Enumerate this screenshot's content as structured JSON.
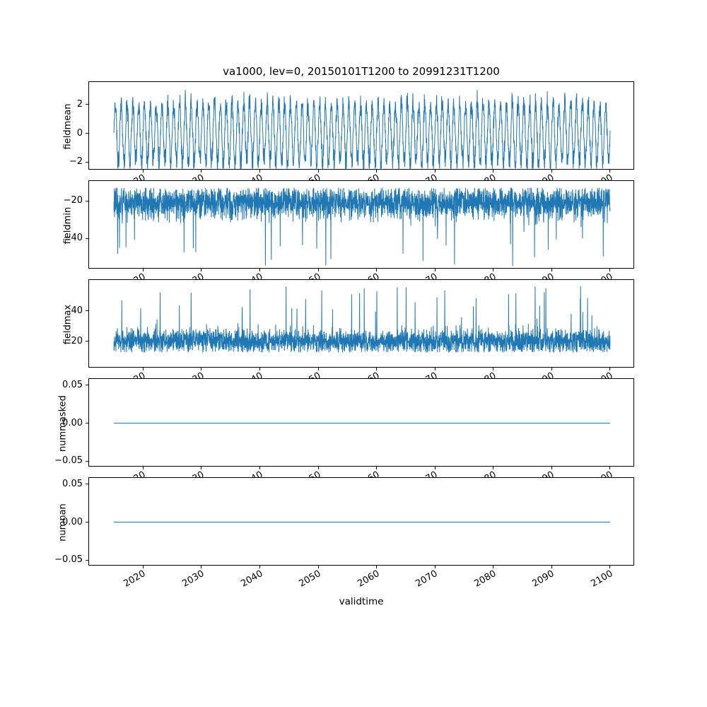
{
  "figure": {
    "background": "#ffffff"
  },
  "chart_data": {
    "type": "line",
    "title": "va1000, lev=0, 20150101T1200 to 20991231T1200",
    "xlabel": "validtime",
    "line_color": "#1f77b4",
    "legend": "none",
    "grid": "off",
    "x_axis": {
      "data_range": [
        2015.0,
        2100.0
      ],
      "view_range": [
        2010.75,
        2104.25
      ],
      "ticks": [
        2020,
        2030,
        2040,
        2050,
        2060,
        2070,
        2080,
        2090,
        2100
      ],
      "tick_rotation_deg": 30
    },
    "subplots": [
      {
        "ylabel": "fieldmean",
        "ylim": [
          -2.57,
          3.57
        ],
        "ytick_values": [
          2,
          0,
          -2
        ],
        "ytick_labels": [
          "2",
          "0",
          "−2"
        ],
        "pattern": "seasonal",
        "mean": 0,
        "amplitude_range": [
          1.6,
          2.5
        ],
        "noise": 0.5,
        "cycles": 85,
        "observed_range": [
          -2.45,
          3.15
        ],
        "n_points": 2600,
        "seed": 11
      },
      {
        "ylabel": "fieldmin",
        "ylim": [
          -56.6,
          -9.4
        ],
        "ytick_values": [
          -20,
          -40
        ],
        "ytick_labels": [
          "−20",
          "−40"
        ],
        "pattern": "noise_spikes_down",
        "mean": -21,
        "noise": 4.2,
        "band": [
          -34,
          -13
        ],
        "spike_prob": 0.009,
        "spike_range": [
          -36,
          -56
        ],
        "observed_range": [
          -56,
          -13
        ],
        "n_points": 3200,
        "seed": 22
      },
      {
        "ylabel": "fieldmax",
        "ylim": [
          2,
          60.5
        ],
        "ytick_values": [
          20,
          40
        ],
        "ytick_labels": [
          "20",
          "40"
        ],
        "pattern": "noise_spikes_up",
        "mean": 20,
        "noise": 4.0,
        "band": [
          12.5,
          32
        ],
        "spike_prob": 0.011,
        "spike_range": [
          34,
          57
        ],
        "observed_range": [
          12,
          57
        ],
        "n_points": 3200,
        "seed": 33
      },
      {
        "ylabel": "nummasked",
        "ylim": [
          -0.058,
          0.058
        ],
        "ytick_values": [
          0.05,
          0,
          -0.05
        ],
        "ytick_labels": [
          "0.05",
          "0.00",
          "−0.05"
        ],
        "pattern": "constant",
        "value": 0,
        "observed_range": [
          0,
          0
        ],
        "n_points": 2,
        "seed": 44
      },
      {
        "ylabel": "numnan",
        "ylim": [
          -0.058,
          0.058
        ],
        "ytick_values": [
          0.05,
          0,
          -0.05
        ],
        "ytick_labels": [
          "0.05",
          "0.00",
          "−0.05"
        ],
        "pattern": "constant",
        "value": 0,
        "observed_range": [
          0,
          0
        ],
        "n_points": 2,
        "seed": 55
      }
    ]
  }
}
